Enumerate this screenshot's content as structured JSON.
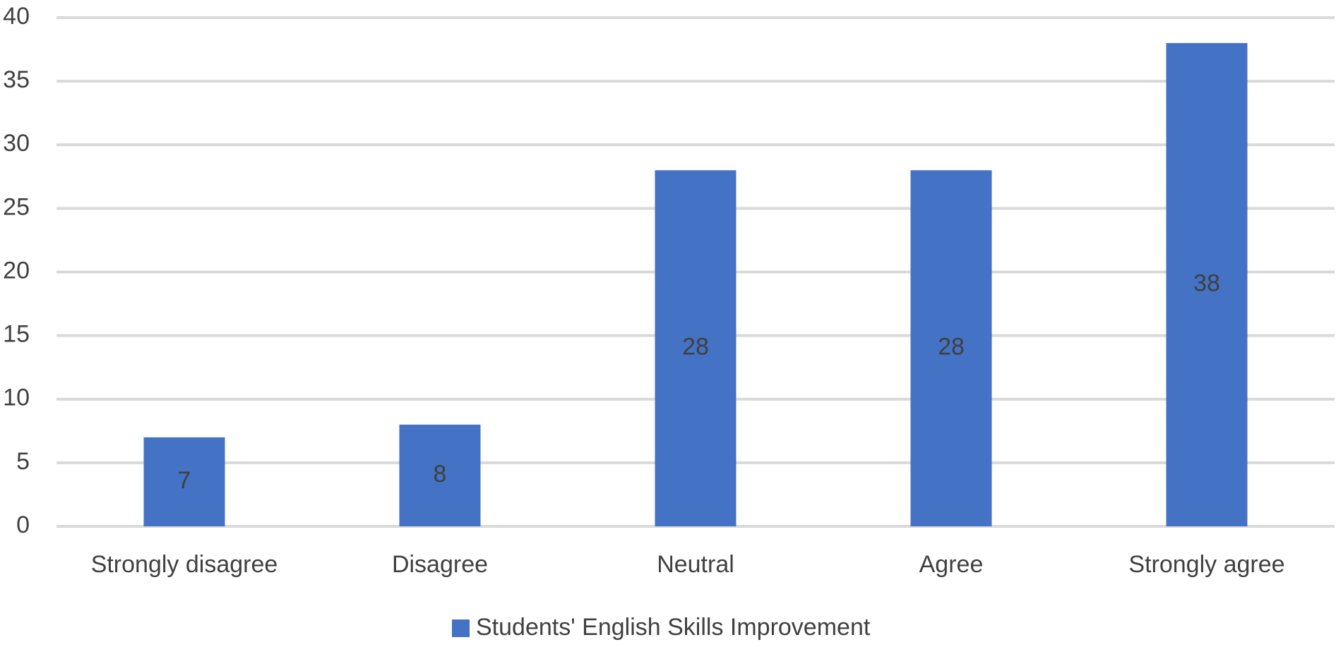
{
  "chart_data": {
    "type": "bar",
    "categories": [
      "Strongly disagree",
      "Disagree",
      "Neutral",
      "Agree",
      "Strongly agree"
    ],
    "series": [
      {
        "name": "Students' English Skills Improvement",
        "values": [
          7,
          8,
          28,
          28,
          38
        ],
        "color": "#4472C4"
      }
    ],
    "title": "",
    "xlabel": "",
    "ylabel": "",
    "ylim": [
      0,
      40
    ],
    "yticks": [
      0,
      5,
      10,
      15,
      20,
      25,
      30,
      35,
      40
    ],
    "grid": true,
    "gridColor": "#D9D9D9",
    "legendPosition": "bottom",
    "dataLabels": true
  }
}
